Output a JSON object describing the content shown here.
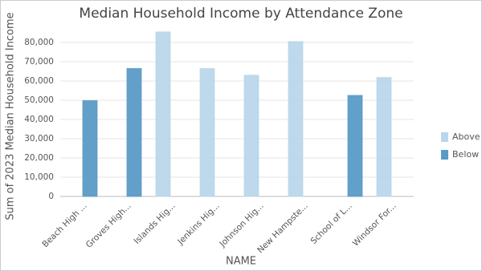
{
  "chart_data": {
    "type": "bar",
    "title": "Median Household Income by Attendance Zone",
    "x_label": "NAME",
    "y_label": "Sum of 2023 Median Household Income",
    "categories": [
      "Beach High ...",
      "Groves High...",
      "Islands Hig...",
      "Jenkins Hig...",
      "Johnson Hig...",
      "New Hampste...",
      "School of L...",
      "Windsor For..."
    ],
    "series": [
      {
        "name": "Above",
        "color": "#b9d7ea",
        "values": [
          null,
          null,
          85500,
          66500,
          63000,
          80500,
          null,
          61800
        ]
      },
      {
        "name": "Below",
        "color": "#5a9bc6",
        "values": [
          49800,
          66500,
          null,
          null,
          null,
          null,
          52500,
          null
        ]
      }
    ],
    "ylim": [
      0,
      86000
    ],
    "yticks": [
      0,
      {
        "value": 10000,
        "label": "10,000"
      },
      {
        "value": 20000,
        "label": "20,000"
      },
      {
        "value": 30000,
        "label": "30,000"
      },
      {
        "value": 40000,
        "label": "40,000"
      },
      {
        "value": 50000,
        "label": "50,000"
      },
      {
        "value": 60000,
        "label": "60,000"
      },
      {
        "value": 70000,
        "label": "70,000"
      },
      {
        "value": 80000,
        "label": "80,000"
      }
    ],
    "grid": true,
    "legend": "right"
  }
}
